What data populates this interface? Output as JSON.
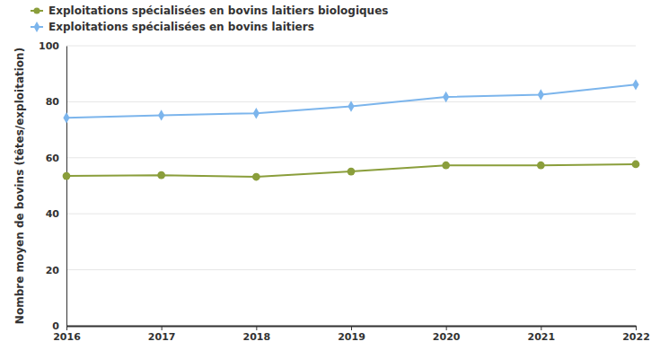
{
  "chart_data": {
    "type": "line",
    "y_label": "Nombre moyen de bovins (têtes/exploitation)",
    "x": [
      2016,
      2017,
      2018,
      2019,
      2020,
      2021,
      2022
    ],
    "series": [
      {
        "name": "Exploitations spécialisées en bovins laitiers biologiques",
        "color": "#8a9e3b",
        "marker": "circle",
        "values": [
          53.5,
          53.8,
          53.2,
          55.1,
          57.3,
          57.3,
          57.7
        ]
      },
      {
        "name": "Exploitations spécialisées en bovins laitiers",
        "color": "#7cb5ec",
        "marker": "diamond",
        "values": [
          74.3,
          75.2,
          75.9,
          78.4,
          81.7,
          82.5,
          86.1
        ]
      }
    ],
    "xlim": [
      2016,
      2022
    ],
    "xticks": [
      2016,
      2017,
      2018,
      2019,
      2020,
      2021,
      2022
    ],
    "ylim": [
      0,
      100
    ],
    "yticks": [
      0,
      20,
      40,
      60,
      80,
      100
    ],
    "grid": true,
    "legend": "top"
  }
}
